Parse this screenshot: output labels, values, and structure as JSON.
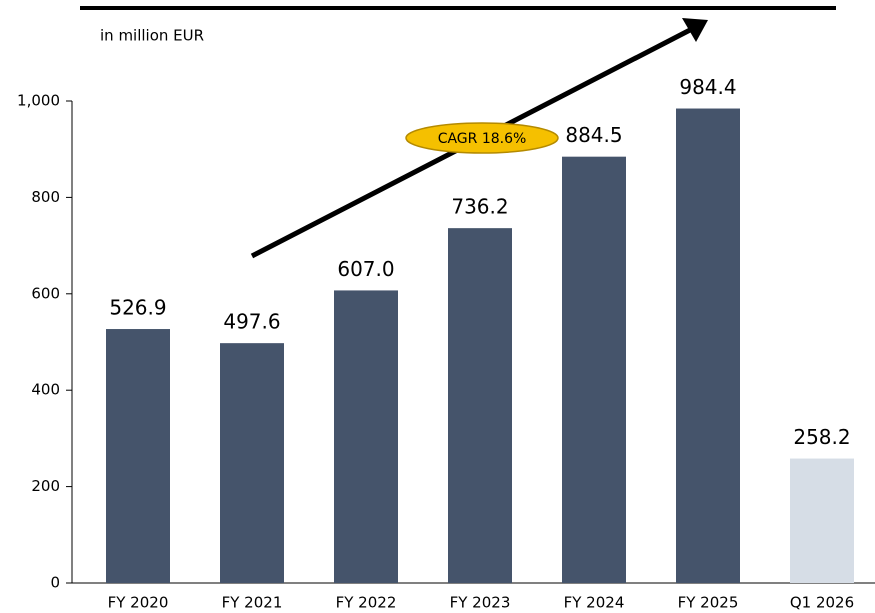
{
  "chart_data": {
    "type": "bar",
    "subtitle": "in million EUR",
    "categories": [
      "FY 2020",
      "FY 2021",
      "FY 2022",
      "FY 2023",
      "FY 2024",
      "FY 2025",
      "Q1 2026"
    ],
    "values": [
      526.9,
      497.6,
      607.0,
      736.2,
      884.5,
      984.4,
      258.2
    ],
    "value_labels": [
      "526.9",
      "497.6",
      "607.0",
      "736.2",
      "884.5",
      "984.4",
      "258.2"
    ],
    "colors": [
      "#45546b",
      "#45546b",
      "#45546b",
      "#45546b",
      "#45546b",
      "#45546b",
      "#d6dde6"
    ],
    "ylim": [
      0,
      1000
    ],
    "yticks": [
      0,
      200,
      400,
      600,
      800,
      {
        "value": 1000,
        "label": "1,000"
      }
    ],
    "annotation": "CAGR 18.6%",
    "grid": false
  }
}
